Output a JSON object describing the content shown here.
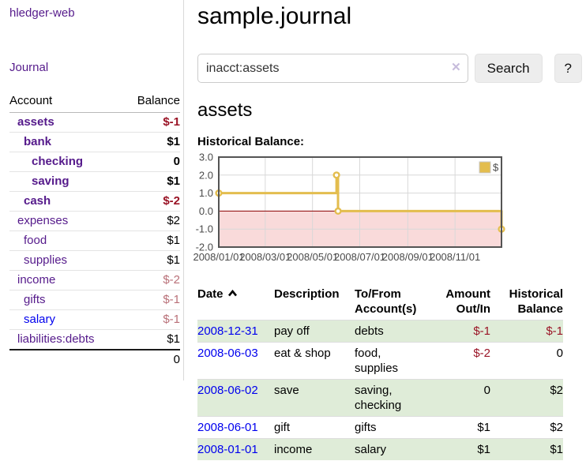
{
  "app": {
    "brand": "hledger-web",
    "nav": {
      "journal": "Journal"
    }
  },
  "sidebar": {
    "headers": {
      "account": "Account",
      "balance": "Balance"
    },
    "accounts": [
      {
        "name": "assets",
        "balance": "$-1"
      },
      {
        "name": "bank",
        "balance": "$1"
      },
      {
        "name": "checking",
        "balance": "0"
      },
      {
        "name": "saving",
        "balance": "$1"
      },
      {
        "name": "cash",
        "balance": "$-2"
      },
      {
        "name": "expenses",
        "balance": "$2"
      },
      {
        "name": "food",
        "balance": "$1"
      },
      {
        "name": "supplies",
        "balance": "$1"
      },
      {
        "name": "income",
        "balance": "$-2"
      },
      {
        "name": "gifts",
        "balance": "$-1"
      },
      {
        "name": "salary",
        "balance": "$-1"
      },
      {
        "name": "liabilities:debts",
        "balance": "$1"
      }
    ],
    "total": "0"
  },
  "main": {
    "title": "sample.journal",
    "search": {
      "value": "inacct:assets",
      "clear_icon": "✕",
      "button_label": "Search",
      "help_label": "?"
    },
    "account_heading": "assets"
  },
  "chart_data": {
    "type": "line",
    "title": "Historical Balance:",
    "x_range": [
      "2008-01-01",
      "2008-12-31"
    ],
    "ylim": [
      -2,
      3
    ],
    "yticks": [
      3,
      2,
      1,
      0,
      -1,
      -2
    ],
    "xticks": [
      "2008/01/01",
      "2008/03/01",
      "2008/05/01",
      "2008/07/01",
      "2008/09/01",
      "2008/11/01"
    ],
    "grid": true,
    "legend_position": "top-right",
    "series": [
      {
        "name": "$",
        "step": true,
        "points": [
          [
            "2008-01-01",
            1
          ],
          [
            "2008-06-01",
            2
          ],
          [
            "2008-06-03",
            0
          ],
          [
            "2008-12-31",
            -1
          ]
        ]
      }
    ],
    "colors": {
      "line": "#e3bd4e",
      "marker_fill": "#ffffff",
      "negative_region": "#f9dada",
      "zero_line": "#8b0000",
      "grid": "#d8d8d8",
      "frame": "#545454"
    }
  },
  "register": {
    "headers": {
      "date": "Date",
      "description": "Description",
      "accounts": "To/From Account(s)",
      "amount": "Amount Out/In",
      "balance": "Historical Balance"
    },
    "rows": [
      {
        "date": "2008-12-31",
        "description": "pay off",
        "accounts": "debts",
        "amount": "$-1",
        "balance": "$-1"
      },
      {
        "date": "2008-06-03",
        "description": "eat & shop",
        "accounts": "food, supplies",
        "amount": "$-2",
        "balance": "0"
      },
      {
        "date": "2008-06-02",
        "description": "save",
        "accounts": "saving, checking",
        "amount": "0",
        "balance": "$2"
      },
      {
        "date": "2008-06-01",
        "description": "gift",
        "accounts": "gifts",
        "amount": "$1",
        "balance": "$2"
      },
      {
        "date": "2008-01-01",
        "description": "income",
        "accounts": "salary",
        "amount": "$1",
        "balance": "$1"
      }
    ]
  },
  "colors": {
    "link_purple": "#551a8b",
    "link_blue": "#0000ee",
    "negative_strong": "#9a1426",
    "negative_muted": "#b97078",
    "row_shade_green": "#dfecd8"
  }
}
